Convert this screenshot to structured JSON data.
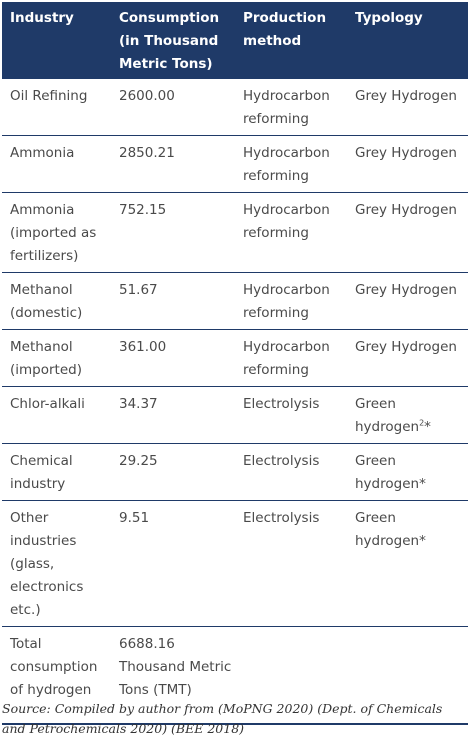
{
  "table": {
    "headers": [
      "Industry",
      "Consumption (in Thousand Metric Tons)",
      "Production method",
      "Typology"
    ],
    "rows": [
      {
        "industry": "Oil Refining",
        "consumption": "2600.00",
        "method": "Hydrocarbon reforming",
        "typology": "Grey Hydrogen"
      },
      {
        "industry": "Ammonia",
        "consumption": "2850.21",
        "method": "Hydrocarbon reforming",
        "typology": "Grey Hydrogen"
      },
      {
        "industry": "Ammonia (imported as fertilizers)",
        "consumption": "752.15",
        "method": "Hydrocarbon reforming",
        "typology": "Grey Hydrogen"
      },
      {
        "industry": "Methanol (domestic)",
        "consumption": "51.67",
        "method": "Hydrocarbon reforming",
        "typology": "Grey Hydrogen"
      },
      {
        "industry": "Methanol (imported)",
        "consumption": "361.00",
        "method": "Hydrocarbon reforming",
        "typology": "Grey Hydrogen"
      },
      {
        "industry": "Chlor-alkali",
        "consumption": "34.37",
        "method": "Electrolysis",
        "typology": "Green hydrogen",
        "typology_note": "2",
        "typology_mark": "*"
      },
      {
        "industry": "Chemical industry",
        "consumption": "29.25",
        "method": "Electrolysis",
        "typology": "Green hydrogen",
        "typology_mark": "*"
      },
      {
        "industry": "Other industries (glass, electronics etc.)",
        "consumption": "9.51",
        "method": "Electrolysis",
        "typology": "Green hydrogen",
        "typology_mark": "*"
      },
      {
        "industry": "Total consumption of hydrogen",
        "consumption": "6688.16 Thousand Metric Tons (TMT)",
        "method": "",
        "typology": ""
      }
    ]
  },
  "source": "Source: Compiled by author from (MoPNG 2020) (Dept. of Chemicals and Petrochemicals 2020) (BEE 2018)",
  "colors": {
    "header_bg": "#1f3a68",
    "header_text": "#ffffff",
    "body_text": "#4a4a4a",
    "rule": "#1f3a68"
  }
}
